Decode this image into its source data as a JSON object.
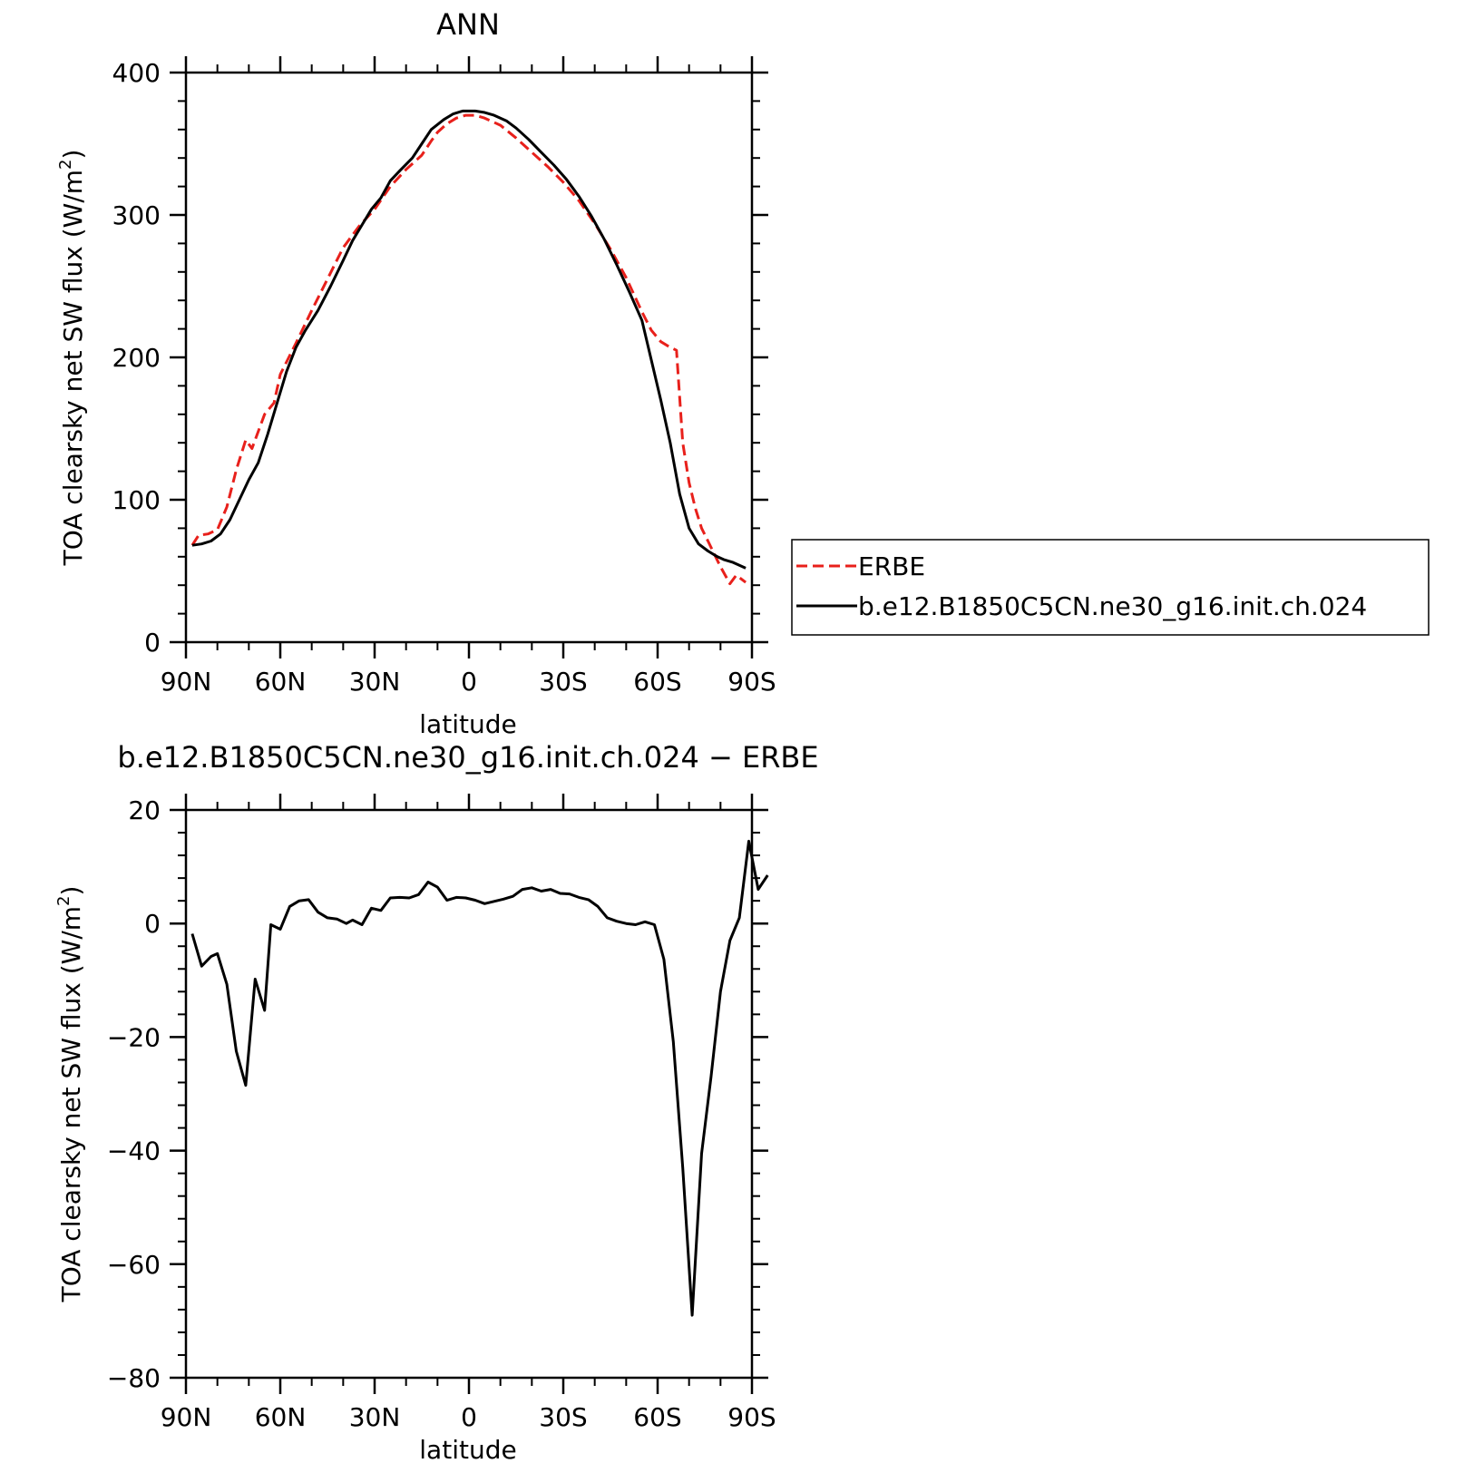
{
  "chart_data": [
    {
      "type": "line",
      "title": "ANN",
      "xlabel": "latitude",
      "ylabel": "TOA clearsky net SW flux (W/m²)",
      "ylabel_main": "TOA clearsky net SW flux (W/m",
      "ylabel_sup": "2",
      "ylabel_close": ")",
      "xlim": [
        90,
        -90
      ],
      "ylim": [
        0,
        400
      ],
      "x_ticks": [
        90,
        60,
        30,
        0,
        -30,
        -60,
        -90
      ],
      "x_tick_labels": [
        "90N",
        "60N",
        "30N",
        "0",
        "30S",
        "60S",
        "90S"
      ],
      "y_ticks": [
        0,
        100,
        200,
        300,
        400
      ],
      "y_tick_labels": [
        "0",
        "100",
        "200",
        "300",
        "400"
      ],
      "grid": false,
      "legend_position": "right",
      "series": [
        {
          "name": "ERBE",
          "color": "#e8201b",
          "dash": "dashed",
          "points": [
            [
              88,
              68
            ],
            [
              86,
              75
            ],
            [
              83,
              76
            ],
            [
              80,
              79
            ],
            [
              77,
              95
            ],
            [
              74,
              121
            ],
            [
              71,
              142
            ],
            [
              69,
              136
            ],
            [
              65,
              160
            ],
            [
              62,
              168
            ],
            [
              60,
              188
            ],
            [
              55,
              210
            ],
            [
              50,
              233
            ],
            [
              45,
              255
            ],
            [
              40,
              277
            ],
            [
              35,
              292
            ],
            [
              30,
              304
            ],
            [
              25,
              320
            ],
            [
              20,
              332
            ],
            [
              15,
              342
            ],
            [
              12,
              352
            ],
            [
              10,
              358
            ],
            [
              7,
              364
            ],
            [
              4,
              368
            ],
            [
              1,
              370
            ],
            [
              -2,
              370
            ],
            [
              -5,
              368
            ],
            [
              -10,
              363
            ],
            [
              -15,
              354
            ],
            [
              -20,
              344
            ],
            [
              -25,
              334
            ],
            [
              -30,
              323
            ],
            [
              -35,
              310
            ],
            [
              -40,
              294
            ],
            [
              -45,
              276
            ],
            [
              -50,
              256
            ],
            [
              -55,
              232
            ],
            [
              -58,
              219
            ],
            [
              -61,
              211
            ],
            [
              -64,
              207
            ],
            [
              -66,
              205
            ],
            [
              -68,
              140
            ],
            [
              -70,
              112
            ],
            [
              -72,
              94
            ],
            [
              -74,
              80
            ],
            [
              -76,
              71
            ],
            [
              -78,
              62
            ],
            [
              -80,
              53
            ],
            [
              -83,
              41
            ],
            [
              -85,
              47
            ],
            [
              -88,
              42
            ]
          ]
        },
        {
          "name": "b.e12.B1850C5CN.ne30_g16.init.ch.024",
          "color": "#000000",
          "dash": "solid",
          "points": [
            [
              88,
              68
            ],
            [
              85,
              69
            ],
            [
              82,
              71
            ],
            [
              79,
              76
            ],
            [
              76,
              86
            ],
            [
              73,
              100
            ],
            [
              70,
              114
            ],
            [
              67,
              126
            ],
            [
              64,
              146
            ],
            [
              61,
              168
            ],
            [
              58,
              190
            ],
            [
              55,
              207
            ],
            [
              52,
              219
            ],
            [
              48,
              233
            ],
            [
              44,
              250
            ],
            [
              40,
              268
            ],
            [
              37,
              282
            ],
            [
              34,
              293
            ],
            [
              31,
              304
            ],
            [
              28,
              312
            ],
            [
              25,
              324
            ],
            [
              22,
              331
            ],
            [
              18,
              340
            ],
            [
              15,
              350
            ],
            [
              12,
              360
            ],
            [
              8,
              367
            ],
            [
              5,
              371
            ],
            [
              2,
              373
            ],
            [
              -2,
              373
            ],
            [
              -5,
              372
            ],
            [
              -8,
              370
            ],
            [
              -12,
              366
            ],
            [
              -15,
              361
            ],
            [
              -19,
              353
            ],
            [
              -23,
              344
            ],
            [
              -27,
              335
            ],
            [
              -31,
              325
            ],
            [
              -35,
              313
            ],
            [
              -39,
              299
            ],
            [
              -43,
              283
            ],
            [
              -47,
              265
            ],
            [
              -51,
              246
            ],
            [
              -55,
              226
            ],
            [
              -58,
              198
            ],
            [
              -61,
              170
            ],
            [
              -64,
              140
            ],
            [
              -67,
              104
            ],
            [
              -70,
              80
            ],
            [
              -73,
              69
            ],
            [
              -76,
              64
            ],
            [
              -79,
              60
            ],
            [
              -81,
              58
            ],
            [
              -84,
              56
            ],
            [
              -88,
              52
            ]
          ]
        }
      ]
    },
    {
      "type": "line",
      "title": "b.e12.B1850C5CN.ne30_g16.init.ch.024 − ERBE",
      "xlabel": "latitude",
      "ylabel": "TOA clearsky net SW flux (W/m²)",
      "ylabel_main": "TOA clearsky net SW flux (W/m",
      "ylabel_sup": "2",
      "ylabel_close": ")",
      "xlim": [
        90,
        -90
      ],
      "ylim": [
        -80,
        20
      ],
      "x_ticks": [
        90,
        60,
        30,
        0,
        -30,
        -60,
        -90
      ],
      "x_tick_labels": [
        "90N",
        "60N",
        "30N",
        "0",
        "30S",
        "60S",
        "90S"
      ],
      "y_ticks": [
        -80,
        -60,
        -40,
        -20,
        0,
        20
      ],
      "y_tick_labels": [
        "−80",
        "−60",
        "−40",
        "−20",
        "0",
        "20"
      ],
      "grid": false,
      "series": [
        {
          "name": "",
          "color": "#000000",
          "dash": "solid",
          "points": [
            [
              88,
              -1.8
            ],
            [
              85,
              -7.5
            ],
            [
              82,
              -5.8
            ],
            [
              80,
              -5.3
            ],
            [
              77,
              -10.7
            ],
            [
              74,
              -22.5
            ],
            [
              71,
              -28.5
            ],
            [
              68,
              -9.8
            ],
            [
              65,
              -15.3
            ],
            [
              63,
              -0.2
            ],
            [
              60,
              -1.0
            ],
            [
              57,
              3.0
            ],
            [
              54,
              4.0
            ],
            [
              51,
              4.2
            ],
            [
              48,
              2.0
            ],
            [
              45,
              1.0
            ],
            [
              42,
              0.8
            ],
            [
              39,
              0.0
            ],
            [
              37,
              0.6
            ],
            [
              34,
              -0.2
            ],
            [
              31,
              2.7
            ],
            [
              28,
              2.3
            ],
            [
              25,
              4.5
            ],
            [
              22,
              4.6
            ],
            [
              19,
              4.5
            ],
            [
              16,
              5.1
            ],
            [
              13,
              7.3
            ],
            [
              10,
              6.4
            ],
            [
              7,
              4.1
            ],
            [
              4,
              4.6
            ],
            [
              1,
              4.5
            ],
            [
              -2,
              4.1
            ],
            [
              -5,
              3.5
            ],
            [
              -8,
              3.9
            ],
            [
              -11,
              4.3
            ],
            [
              -14,
              4.8
            ],
            [
              -17,
              6.0
            ],
            [
              -20,
              6.3
            ],
            [
              -23,
              5.7
            ],
            [
              -26,
              6.0
            ],
            [
              -29,
              5.3
            ],
            [
              -32,
              5.2
            ],
            [
              -35,
              4.6
            ],
            [
              -38,
              4.2
            ],
            [
              -41,
              3.0
            ],
            [
              -44,
              1.0
            ],
            [
              -47,
              0.4
            ],
            [
              -50,
              0.0
            ],
            [
              -53,
              -0.2
            ],
            [
              -56,
              0.3
            ],
            [
              -59,
              -0.2
            ],
            [
              -62,
              -6.3
            ],
            [
              -65,
              -20.8
            ],
            [
              -68,
              -43.0
            ],
            [
              -71,
              -69.0
            ],
            [
              -74,
              -40.5
            ],
            [
              -77,
              -27.0
            ],
            [
              -80,
              -12.0
            ],
            [
              -83,
              -3.0
            ],
            [
              -86,
              1.0
            ],
            [
              -89,
              14.5
            ],
            [
              -92,
              6.0
            ],
            [
              -95,
              8.5
            ]
          ]
        }
      ]
    }
  ]
}
